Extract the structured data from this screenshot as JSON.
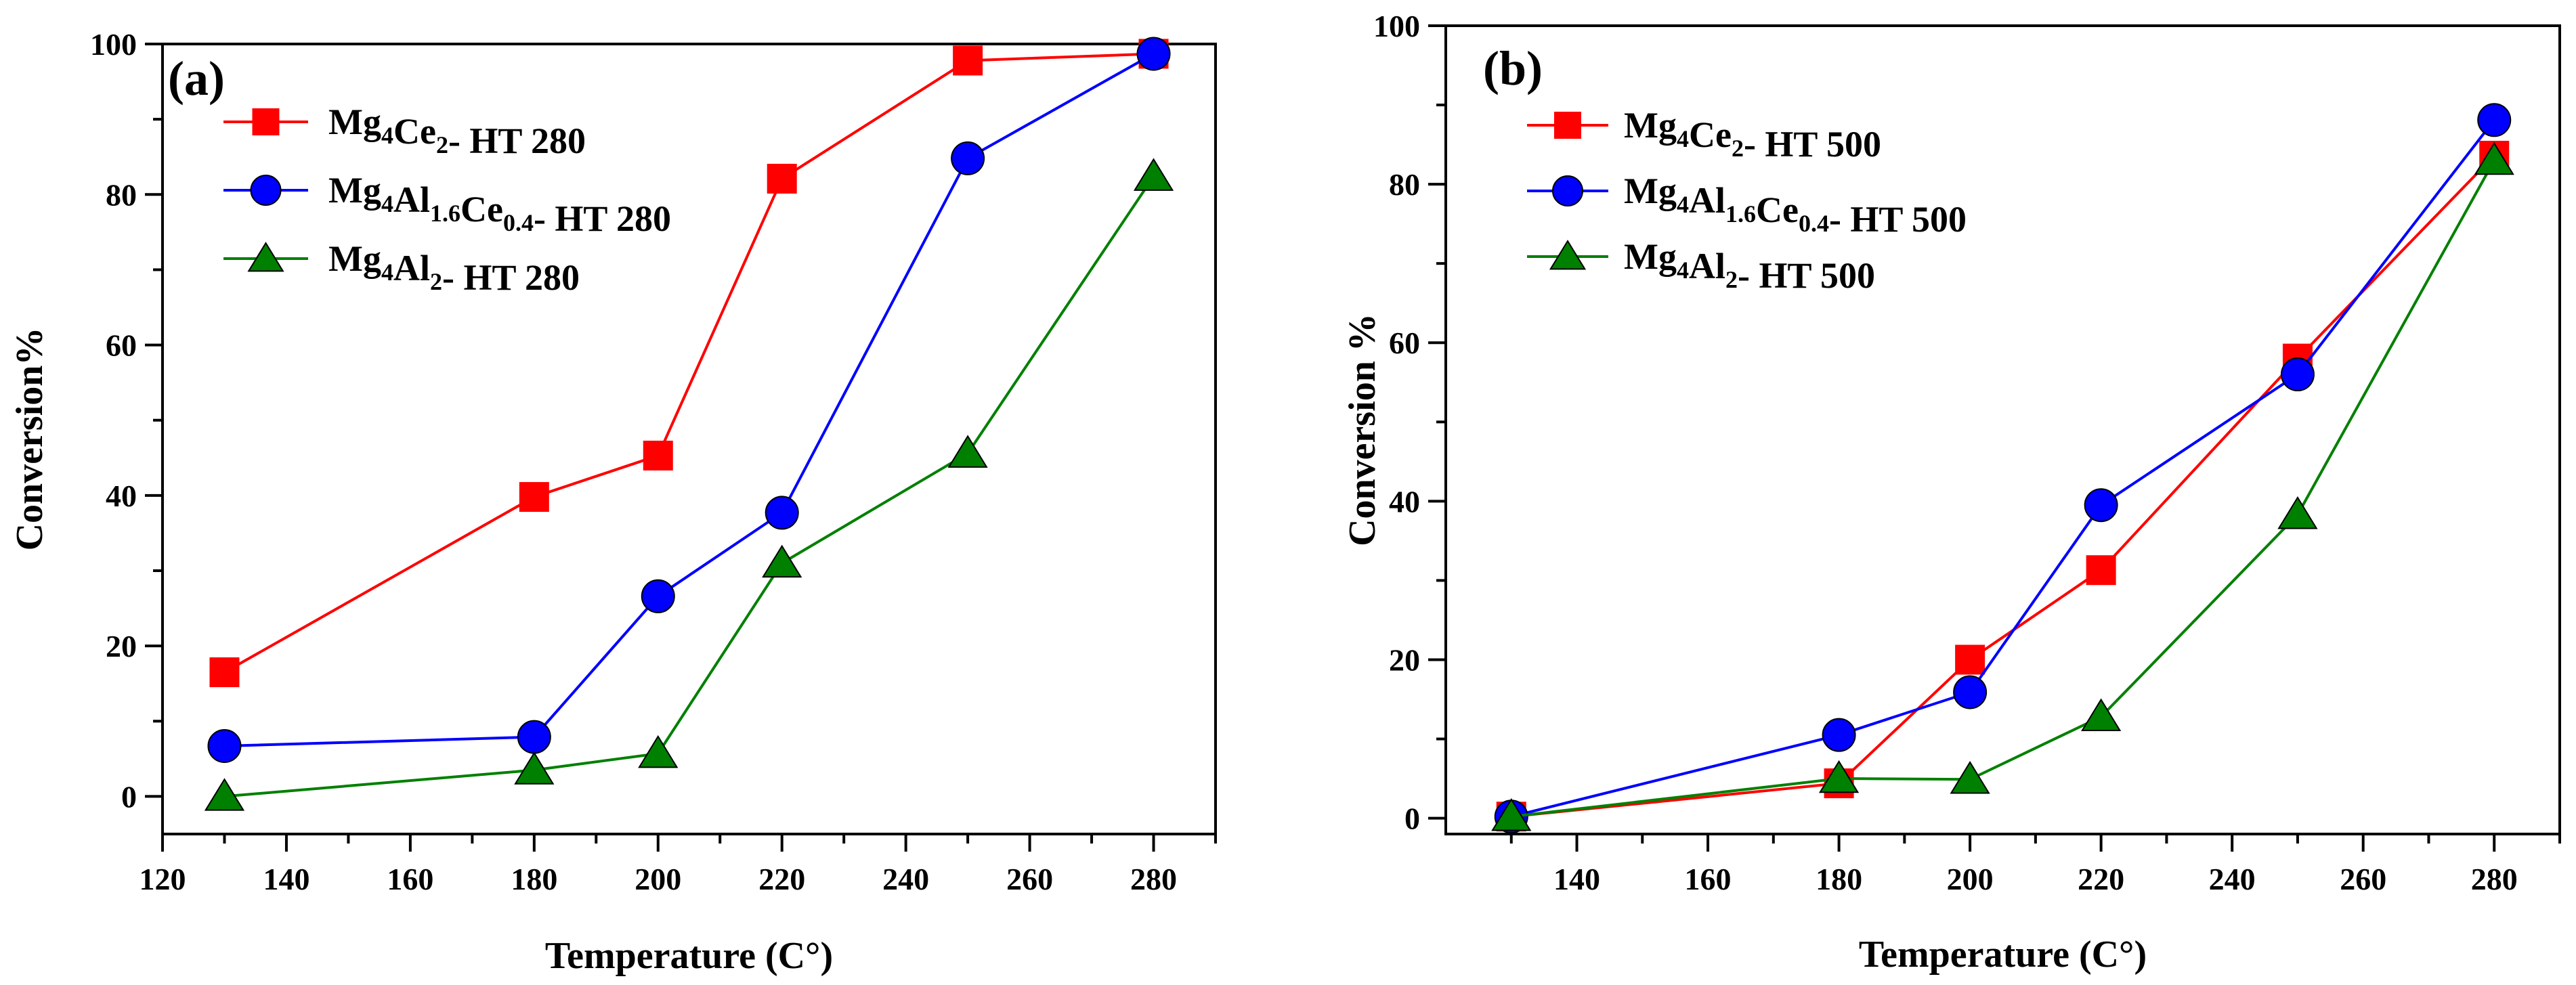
{
  "chart_data": [
    {
      "type": "line",
      "panel_label": "(a)",
      "xlabel": "Temperature (C°)",
      "ylabel": "Conversion%",
      "xlim": [
        120,
        290
      ],
      "ylim": [
        -5,
        100
      ],
      "xticks": [
        120,
        140,
        160,
        180,
        200,
        220,
        240,
        260,
        280
      ],
      "xtick_labels": [
        "120",
        "140",
        "160",
        "180",
        "200",
        "220",
        "240",
        "260",
        "280"
      ],
      "yticks": [
        0,
        20,
        40,
        60,
        80,
        100
      ],
      "ytick_labels": [
        "0",
        "20",
        "40",
        "60",
        "80",
        "100"
      ],
      "grid": false,
      "legend_position": "top-left",
      "series": [
        {
          "name": "Mg4Ce2- HT 280",
          "label_parts": [
            [
              "Mg",
              "n"
            ],
            [
              "4",
              "sub"
            ],
            [
              "Ce",
              "n"
            ],
            [
              "2",
              "sub"
            ],
            [
              "- HT 280",
              "n"
            ]
          ],
          "color": "#ff0000",
          "marker": "square",
          "x": [
            130,
            180,
            200,
            220,
            250,
            280
          ],
          "y": [
            16.5,
            39.8,
            45.3,
            82.1,
            97.8,
            98.7
          ]
        },
        {
          "name": "Mg4Al1.6Ce0.4- HT 280",
          "label_parts": [
            [
              "Mg",
              "n"
            ],
            [
              "4",
              "sub"
            ],
            [
              "Al",
              "n"
            ],
            [
              "1.6",
              "sub"
            ],
            [
              "Ce",
              "n"
            ],
            [
              "0.4",
              "sub"
            ],
            [
              "- HT 280",
              "n"
            ]
          ],
          "color": "#0000ff",
          "marker": "circle",
          "x": [
            130,
            180,
            200,
            220,
            250,
            280
          ],
          "y": [
            6.7,
            7.9,
            26.6,
            37.7,
            84.8,
            98.7
          ]
        },
        {
          "name": "Mg4Al2- HT 280",
          "label_parts": [
            [
              "Mg",
              "n"
            ],
            [
              "4",
              "sub"
            ],
            [
              "Al",
              "n"
            ],
            [
              "2",
              "sub"
            ],
            [
              "- HT 280",
              "n"
            ]
          ],
          "color": "#008000",
          "marker": "triangle",
          "x": [
            130,
            180,
            200,
            220,
            250,
            280
          ],
          "y": [
            0.0,
            3.5,
            5.7,
            31.0,
            45.6,
            82.4
          ]
        }
      ]
    },
    {
      "type": "line",
      "panel_label": "(b)",
      "xlabel": "Temperature (C°)",
      "ylabel": "Conversion %",
      "xlim": [
        120,
        290
      ],
      "ylim": [
        -2,
        100
      ],
      "xticks": [
        140,
        160,
        180,
        200,
        220,
        240,
        260,
        280
      ],
      "xtick_labels": [
        "140",
        "160",
        "180",
        "200",
        "220",
        "240",
        "260",
        "280"
      ],
      "yticks": [
        0,
        20,
        40,
        60,
        80,
        100
      ],
      "ytick_labels": [
        "0",
        "20",
        "40",
        "60",
        "80",
        "100"
      ],
      "grid": false,
      "legend_position": "top-left",
      "series": [
        {
          "name": "Mg4Ce2- HT 500",
          "label_parts": [
            [
              "Mg",
              "n"
            ],
            [
              "4",
              "sub"
            ],
            [
              "Ce",
              "n"
            ],
            [
              "2",
              "sub"
            ],
            [
              "- HT 500",
              "n"
            ]
          ],
          "color": "#ff0000",
          "marker": "square",
          "x": [
            130,
            180,
            200,
            220,
            250,
            280
          ],
          "y": [
            0.2,
            4.4,
            20.0,
            31.3,
            58.0,
            83.6
          ]
        },
        {
          "name": "Mg4Al1.6Ce0.4- HT 500",
          "label_parts": [
            [
              "Mg",
              "n"
            ],
            [
              "4",
              "sub"
            ],
            [
              "Al",
              "n"
            ],
            [
              "1.6",
              "sub"
            ],
            [
              "Ce",
              "n"
            ],
            [
              "0.4",
              "sub"
            ],
            [
              "- HT 500",
              "n"
            ]
          ],
          "color": "#0000ff",
          "marker": "circle",
          "x": [
            130,
            180,
            200,
            220,
            250,
            280
          ],
          "y": [
            0.2,
            10.5,
            15.9,
            39.5,
            56.0,
            88.1
          ]
        },
        {
          "name": "Mg4Al2- HT 500",
          "label_parts": [
            [
              "Mg",
              "n"
            ],
            [
              "4",
              "sub"
            ],
            [
              "Al",
              "n"
            ],
            [
              "2",
              "sub"
            ],
            [
              "- HT 500",
              "n"
            ]
          ],
          "color": "#008000",
          "marker": "triangle",
          "x": [
            130,
            180,
            200,
            220,
            250,
            280
          ],
          "y": [
            0.2,
            5.0,
            4.9,
            12.8,
            38.3,
            83.0
          ]
        }
      ]
    }
  ]
}
